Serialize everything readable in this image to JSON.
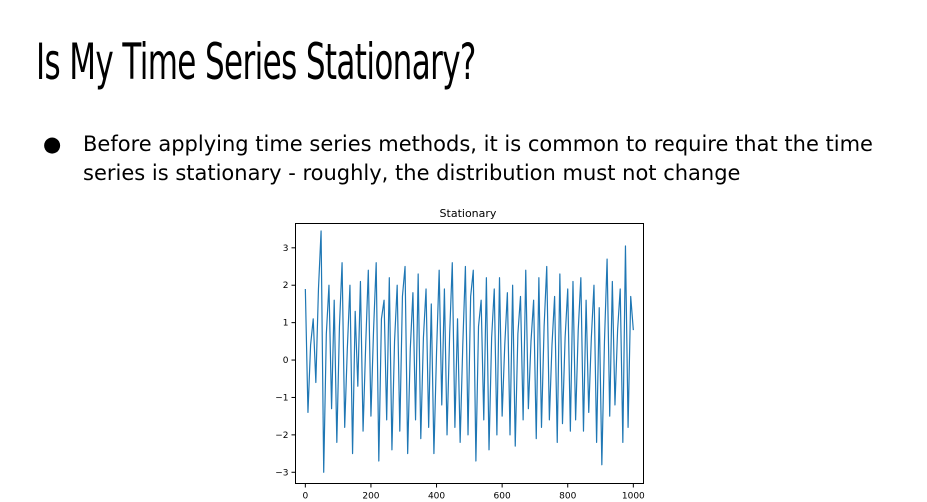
{
  "slide": {
    "title": "Is My Time Series Stationary?",
    "bullets": [
      {
        "symbol": "●",
        "text": "Before applying time series methods, it is common to require that the time series is stationary - roughly, the distribution must not change"
      }
    ]
  },
  "chart_data": {
    "type": "line",
    "title": "Stationary",
    "xlabel": "",
    "ylabel": "",
    "xlim": [
      -30,
      1031
    ],
    "ylim": [
      -3.3,
      3.65
    ],
    "x_ticks": [
      0,
      200,
      400,
      600,
      800,
      1000
    ],
    "x_tick_labels": [
      "0",
      "200",
      "400",
      "600",
      "800",
      "1000"
    ],
    "y_ticks": [
      3,
      2,
      1,
      0,
      -1,
      -2,
      -3
    ],
    "y_tick_labels": [
      "3",
      "2",
      "1",
      "0",
      "−1",
      "−2",
      "−3"
    ],
    "grid": false,
    "color": "#1f77b4",
    "series": [
      {
        "x": [
          0,
          8,
          16,
          24,
          32,
          40,
          48,
          56,
          64,
          72,
          80,
          88,
          96,
          104,
          112,
          120,
          128,
          136,
          144,
          152,
          160,
          168,
          176,
          184,
          192,
          200,
          208,
          216,
          224,
          232,
          240,
          248,
          256,
          264,
          272,
          280,
          288,
          296,
          304,
          312,
          320,
          328,
          336,
          344,
          352,
          360,
          368,
          376,
          384,
          392,
          400,
          408,
          416,
          424,
          432,
          440,
          448,
          456,
          464,
          472,
          480,
          488,
          496,
          504,
          512,
          520,
          528,
          536,
          544,
          552,
          560,
          568,
          576,
          584,
          592,
          600,
          608,
          616,
          624,
          632,
          640,
          648,
          656,
          664,
          672,
          680,
          688,
          696,
          704,
          712,
          720,
          728,
          736,
          744,
          752,
          760,
          768,
          776,
          784,
          792,
          800,
          808,
          816,
          824,
          832,
          840,
          848,
          856,
          864,
          872,
          880,
          888,
          896,
          904,
          912,
          920,
          928,
          936,
          944,
          952,
          960,
          968,
          976,
          984,
          992,
          1000
        ],
        "values": [
          1.9,
          -1.4,
          0.4,
          1.1,
          -0.6,
          1.9,
          3.45,
          -3.0,
          0.7,
          2.0,
          -1.3,
          1.6,
          -2.2,
          0.9,
          2.6,
          -1.8,
          0.3,
          2.0,
          -2.5,
          1.3,
          -0.7,
          2.1,
          -1.9,
          0.4,
          2.4,
          -1.5,
          0.8,
          2.6,
          -2.7,
          1.1,
          1.6,
          -1.6,
          2.2,
          -2.4,
          0.5,
          2.0,
          -1.9,
          1.7,
          2.5,
          -2.5,
          0.3,
          1.8,
          -1.6,
          2.3,
          -2.1,
          0.6,
          1.9,
          -1.8,
          1.5,
          -2.5,
          0.2,
          2.4,
          -1.2,
          1.9,
          -2.0,
          0.7,
          2.6,
          -1.8,
          1.1,
          -2.2,
          0.4,
          2.5,
          -2.0,
          1.7,
          2.4,
          -2.7,
          0.9,
          1.6,
          -1.6,
          2.2,
          -2.4,
          0.6,
          1.9,
          -2.0,
          2.2,
          -1.5,
          0.4,
          1.8,
          -2.0,
          2.0,
          -2.3,
          0.7,
          1.7,
          -1.6,
          2.4,
          -1.3,
          0.5,
          1.6,
          -2.1,
          2.2,
          -1.8,
          0.9,
          2.5,
          -1.6,
          0.4,
          1.7,
          -2.2,
          2.3,
          -1.7,
          0.6,
          1.9,
          -1.9,
          2.1,
          -1.6,
          0.8,
          2.2,
          -1.9,
          1.6,
          -1.4,
          0.6,
          2.0,
          -2.2,
          1.4,
          -2.8,
          0.5,
          2.7,
          -1.5,
          2.1,
          -1.2,
          0.8,
          1.9,
          -2.2,
          3.05,
          -1.8,
          1.7,
          0.8
        ]
      }
    ]
  }
}
